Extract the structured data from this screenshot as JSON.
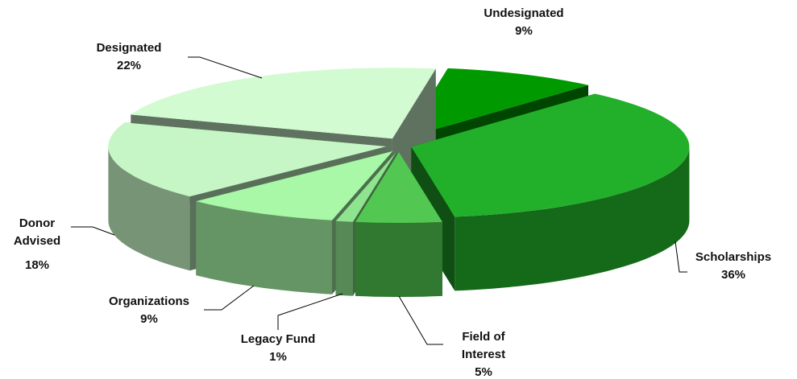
{
  "chart_data": {
    "type": "pie3d",
    "categories": [
      "Undesignated",
      "Scholarships",
      "Field of Interest",
      "Legacy Fund",
      "Organizations",
      "Donor Advised",
      "Designated"
    ],
    "values": [
      9,
      36,
      5,
      1,
      9,
      18,
      22
    ],
    "value_labels": [
      "9%",
      "36%",
      "5%",
      "1%",
      "9%",
      "18%",
      "22%"
    ],
    "colors": [
      "#009a00",
      "#22b02a",
      "#52c852",
      "#8fe58f",
      "#a8f8a8",
      "#c6f6c6",
      "#d2fbd2"
    ]
  }
}
